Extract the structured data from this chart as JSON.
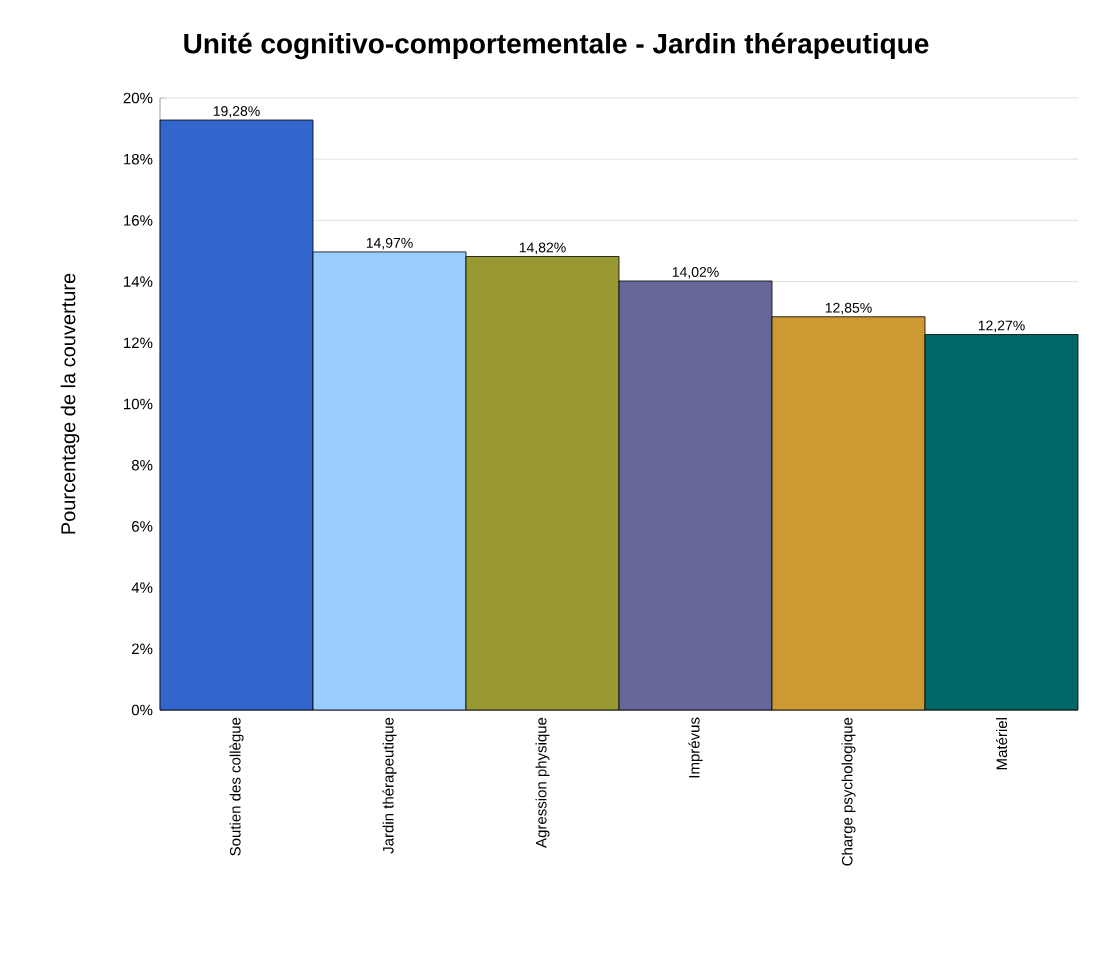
{
  "chart_data": {
    "type": "bar",
    "title": "Unité cognitivo-comportementale - Jardin thérapeutique",
    "ylabel": "Pourcentage de la couverture",
    "categories": [
      "Soutien des collègue",
      "Jardin thérapeutique",
      "Agression physique",
      "Imprévus",
      "Charge psychologique",
      "Matériel"
    ],
    "values": [
      19.28,
      14.97,
      14.82,
      14.02,
      12.85,
      12.27
    ],
    "value_labels": [
      "19,28%",
      "14,97%",
      "14,82%",
      "14,02%",
      "12,85%",
      "12,27%"
    ],
    "colors": [
      "#3366cc",
      "#99ccff",
      "#999933",
      "#666699",
      "#cc9933",
      "#006666"
    ],
    "ylim": [
      0,
      20
    ],
    "yticks": [
      {
        "value": 0,
        "label": "0%"
      },
      {
        "value": 2,
        "label": "2%"
      },
      {
        "value": 4,
        "label": "4%"
      },
      {
        "value": 6,
        "label": "6%"
      },
      {
        "value": 8,
        "label": "8%"
      },
      {
        "value": 10,
        "label": "10%"
      },
      {
        "value": 12,
        "label": "12%"
      },
      {
        "value": 14,
        "label": "14%"
      },
      {
        "value": 16,
        "label": "16%"
      },
      {
        "value": 18,
        "label": "18%"
      },
      {
        "value": 20,
        "label": "20%"
      }
    ],
    "grid": "y"
  }
}
